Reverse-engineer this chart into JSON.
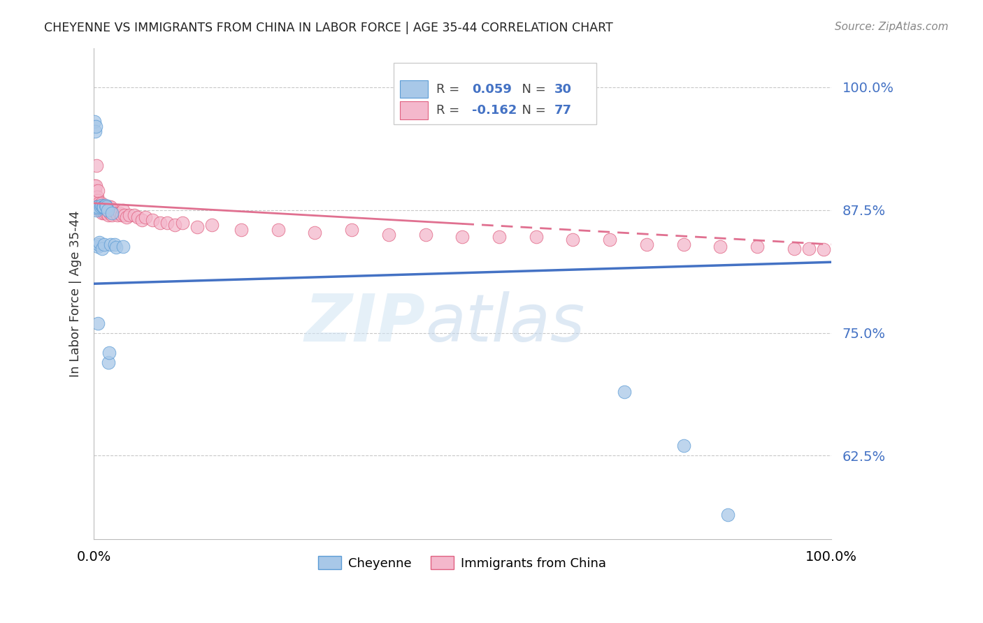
{
  "title": "CHEYENNE VS IMMIGRANTS FROM CHINA IN LABOR FORCE | AGE 35-44 CORRELATION CHART",
  "source": "Source: ZipAtlas.com",
  "ylabel": "In Labor Force | Age 35-44",
  "legend_label1": "Cheyenne",
  "legend_label2": "Immigrants from China",
  "R1": 0.059,
  "N1": 30,
  "R2": -0.162,
  "N2": 77,
  "watermark_left": "ZIP",
  "watermark_right": "atlas",
  "cheyenne_x": [
    0.001,
    0.002,
    0.003,
    0.004,
    0.004,
    0.005,
    0.005,
    0.006,
    0.006,
    0.007,
    0.008,
    0.009,
    0.01,
    0.011,
    0.012,
    0.013,
    0.014,
    0.016,
    0.017,
    0.019,
    0.02,
    0.021,
    0.023,
    0.025,
    0.028,
    0.03,
    0.04,
    0.72,
    0.8,
    0.86
  ],
  "cheyenne_y": [
    0.965,
    0.955,
    0.96,
    0.875,
    0.878,
    0.877,
    0.878,
    0.838,
    0.76,
    0.84,
    0.842,
    0.878,
    0.88,
    0.836,
    0.878,
    0.878,
    0.84,
    0.88,
    0.878,
    0.875,
    0.72,
    0.73,
    0.84,
    0.872,
    0.84,
    0.837,
    0.838,
    0.69,
    0.635,
    0.565
  ],
  "china_x": [
    0.001,
    0.002,
    0.002,
    0.003,
    0.003,
    0.004,
    0.004,
    0.005,
    0.005,
    0.006,
    0.006,
    0.006,
    0.007,
    0.007,
    0.008,
    0.008,
    0.009,
    0.009,
    0.01,
    0.01,
    0.011,
    0.011,
    0.012,
    0.012,
    0.013,
    0.013,
    0.014,
    0.014,
    0.015,
    0.015,
    0.016,
    0.017,
    0.018,
    0.019,
    0.02,
    0.021,
    0.022,
    0.023,
    0.025,
    0.027,
    0.03,
    0.032,
    0.035,
    0.038,
    0.04,
    0.042,
    0.045,
    0.048,
    0.055,
    0.06,
    0.065,
    0.07,
    0.08,
    0.09,
    0.1,
    0.11,
    0.12,
    0.14,
    0.16,
    0.2,
    0.25,
    0.3,
    0.35,
    0.4,
    0.45,
    0.5,
    0.55,
    0.6,
    0.65,
    0.7,
    0.75,
    0.8,
    0.85,
    0.9,
    0.95,
    0.97,
    0.99
  ],
  "china_y": [
    0.9,
    0.895,
    0.888,
    0.9,
    0.885,
    0.882,
    0.92,
    0.888,
    0.878,
    0.885,
    0.88,
    0.895,
    0.882,
    0.878,
    0.88,
    0.875,
    0.878,
    0.88,
    0.882,
    0.876,
    0.878,
    0.872,
    0.88,
    0.876,
    0.88,
    0.875,
    0.878,
    0.872,
    0.878,
    0.876,
    0.875,
    0.872,
    0.878,
    0.875,
    0.87,
    0.878,
    0.872,
    0.878,
    0.87,
    0.875,
    0.872,
    0.87,
    0.872,
    0.87,
    0.875,
    0.87,
    0.868,
    0.87,
    0.87,
    0.868,
    0.865,
    0.868,
    0.865,
    0.862,
    0.862,
    0.86,
    0.862,
    0.858,
    0.86,
    0.855,
    0.855,
    0.852,
    0.855,
    0.85,
    0.85,
    0.848,
    0.848,
    0.848,
    0.845,
    0.845,
    0.84,
    0.84,
    0.838,
    0.838,
    0.836,
    0.836,
    0.835
  ],
  "trend_blue_x0": 0.0,
  "trend_blue_y0": 0.8,
  "trend_blue_x1": 1.0,
  "trend_blue_y1": 0.822,
  "trend_pink_x0": 0.0,
  "trend_pink_y0": 0.882,
  "trend_pink_x1": 1.0,
  "trend_pink_y1": 0.84,
  "xlim": [
    0.0,
    1.0
  ],
  "ylim": [
    0.54,
    1.04
  ],
  "yticks": [
    0.625,
    0.75,
    0.875,
    1.0
  ],
  "ytick_labels": [
    "62.5%",
    "75.0%",
    "87.5%",
    "100.0%"
  ],
  "color_cheyenne_fill": "#a8c8e8",
  "color_cheyenne_edge": "#5b9bd5",
  "color_china_fill": "#f4b8cc",
  "color_china_edge": "#e06080",
  "color_line_blue": "#4472c4",
  "color_line_pink": "#e07090",
  "background_color": "#ffffff",
  "grid_color": "#c8c8c8"
}
